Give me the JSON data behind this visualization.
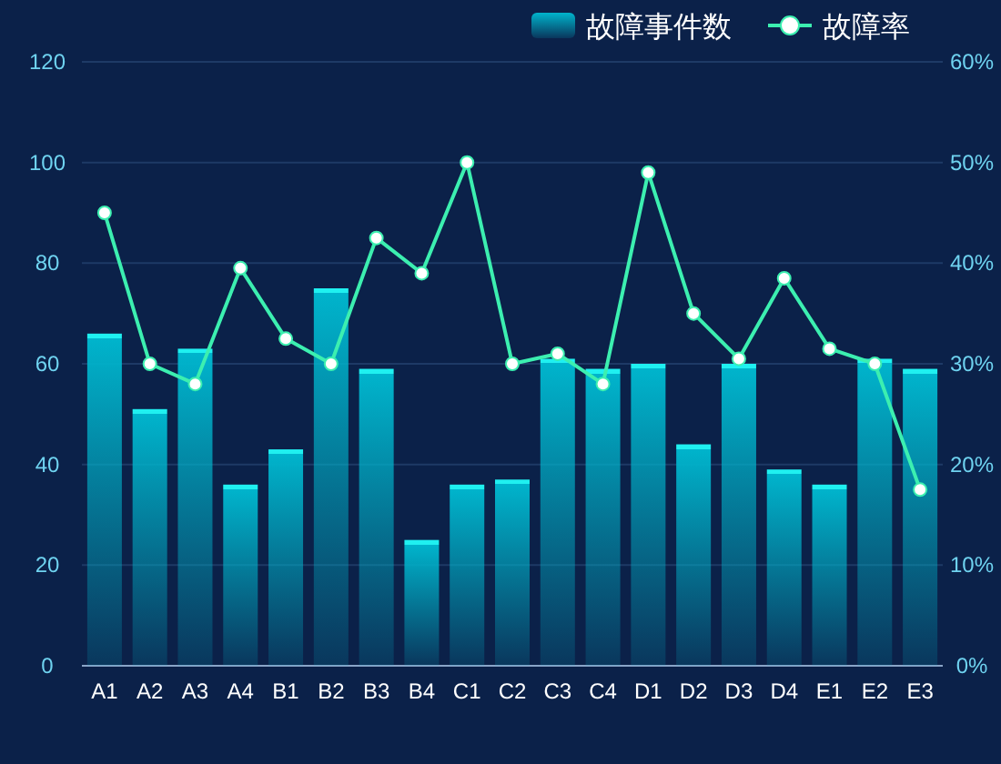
{
  "chart_data": {
    "type": "bar",
    "categories": [
      "A1",
      "A2",
      "A3",
      "A4",
      "B1",
      "B2",
      "B3",
      "B4",
      "C1",
      "C2",
      "C3",
      "C4",
      "D1",
      "D2",
      "D3",
      "D4",
      "E1",
      "E2",
      "E3"
    ],
    "series": [
      {
        "name": "故障事件数",
        "color": "#00b4cc",
        "values": [
          66,
          51,
          63,
          36,
          43,
          75,
          59,
          25,
          36,
          37,
          61,
          59,
          60,
          44,
          60,
          39,
          36,
          61,
          59
        ]
      },
      {
        "name": "故障率",
        "type": "line",
        "axis": "y2",
        "color": "#3cefb0",
        "marker": "circle",
        "values": [
          45,
          30,
          28,
          39.5,
          32.5,
          30,
          42.5,
          39,
          50,
          30,
          31,
          28,
          49,
          35,
          30.5,
          38.5,
          31.5,
          30,
          17.5
        ]
      }
    ],
    "ylim": [
      0,
      120
    ],
    "yticks": [
      0,
      20,
      40,
      60,
      80,
      100,
      120
    ],
    "y2lim": [
      0,
      60
    ],
    "y2ticks": [
      {
        "value": 0,
        "label": "0%"
      },
      {
        "value": 10,
        "label": "10%"
      },
      {
        "value": 20,
        "label": "20%"
      },
      {
        "value": 30,
        "label": "30%"
      },
      {
        "value": 40,
        "label": "40%"
      },
      {
        "value": 50,
        "label": "50%"
      },
      {
        "value": 60,
        "label": "60%"
      }
    ],
    "grid": "y",
    "legend": "top right"
  }
}
